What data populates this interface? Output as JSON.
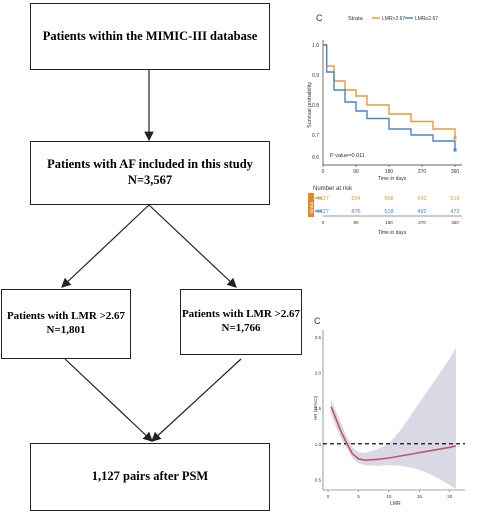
{
  "flowchart": {
    "box1": {
      "line1": "Patients within the MIMIC-III database"
    },
    "box2": {
      "line1": "Patients with AF included in this study",
      "line2": "N=3,567"
    },
    "box3": {
      "line1": "Patients with  LMR  >2.67",
      "line2": "N=1,801"
    },
    "box4": {
      "line1": "Patients with  LMR  >2.67",
      "line2": "N=1,766"
    },
    "box5": {
      "line1": "1,127 pairs after PSM"
    }
  },
  "km": {
    "panel_label": "C",
    "strata_title": "Strata",
    "legend": [
      "LMR>2.67",
      "LMR≤2.67"
    ],
    "colors": {
      "high": "#E59A3B",
      "low": "#4A86C8"
    },
    "pvalue": "P value=0.011",
    "ylabel": "Survival probability",
    "xlabel": "Time in days",
    "risk_title": "Number at risk",
    "risk_side": "Strata",
    "risk_xlabel": "Time in days",
    "xticks": [
      "0",
      "90",
      "180",
      "270",
      "360"
    ],
    "yticks": [
      "1.0",
      "0.9",
      "0.8",
      "0.7",
      "0.6"
    ],
    "risk_high": [
      "1127",
      "934",
      "568",
      "542",
      "519"
    ],
    "risk_low": [
      "1127",
      "876",
      "518",
      "492",
      "472"
    ]
  },
  "rcs": {
    "panel_label": "C",
    "ylabel": "HR (95%CI)",
    "xlabel": "LMR",
    "yticks": [
      "2.5",
      "2.0",
      "1.5",
      "1.0",
      "0.5"
    ],
    "xticks": [
      "0",
      "5",
      "10",
      "15",
      "20"
    ],
    "colors": {
      "line": "#C0566A",
      "band": "#D9D9E6"
    }
  },
  "chart_data": [
    {
      "type": "line",
      "title": "",
      "xlabel": "Time in days",
      "ylabel": "Survival probability",
      "xlim": [
        0,
        360
      ],
      "ylim": [
        0.6,
        1.0
      ],
      "legend_title": "Strata",
      "series": [
        {
          "name": "LMR>2.67",
          "x": [
            0,
            10,
            30,
            60,
            90,
            120,
            180,
            240,
            300,
            360
          ],
          "y": [
            1.0,
            0.93,
            0.88,
            0.85,
            0.83,
            0.8,
            0.77,
            0.745,
            0.72,
            0.69
          ]
        },
        {
          "name": "LMR≤2.67",
          "x": [
            0,
            10,
            30,
            60,
            90,
            120,
            180,
            240,
            300,
            360
          ],
          "y": [
            1.0,
            0.91,
            0.85,
            0.81,
            0.78,
            0.755,
            0.72,
            0.7,
            0.68,
            0.65
          ]
        }
      ],
      "annotations": [
        "P value=0.011"
      ],
      "risk_table": {
        "time": [
          0,
          90,
          180,
          270,
          360
        ],
        "LMR>2.67": [
          1127,
          934,
          568,
          542,
          519
        ],
        "LMR≤2.67": [
          1127,
          876,
          518,
          492,
          472
        ]
      }
    },
    {
      "type": "line",
      "title": "",
      "xlabel": "LMR",
      "ylabel": "HR (95%CI)",
      "xlim": [
        0,
        22
      ],
      "ylim": [
        0.35,
        2.6
      ],
      "reference_line": 1.0,
      "series": [
        {
          "name": "",
          "x": [
            0.5,
            1,
            2,
            3,
            4,
            5,
            6,
            8,
            10,
            12,
            14,
            16,
            18,
            20,
            21
          ],
          "y": [
            1.52,
            1.42,
            1.2,
            1.02,
            0.86,
            0.79,
            0.77,
            0.78,
            0.8,
            0.83,
            0.86,
            0.89,
            0.92,
            0.95,
            0.97
          ],
          "lower": [
            1.42,
            1.3,
            1.1,
            0.95,
            0.8,
            0.73,
            0.7,
            0.69,
            0.7,
            0.69,
            0.66,
            0.6,
            0.52,
            0.42,
            0.36
          ],
          "upper": [
            1.62,
            1.52,
            1.32,
            1.12,
            0.95,
            0.88,
            0.87,
            0.92,
            1.0,
            1.2,
            1.45,
            1.7,
            1.95,
            2.2,
            2.35
          ]
        }
      ]
    }
  ]
}
